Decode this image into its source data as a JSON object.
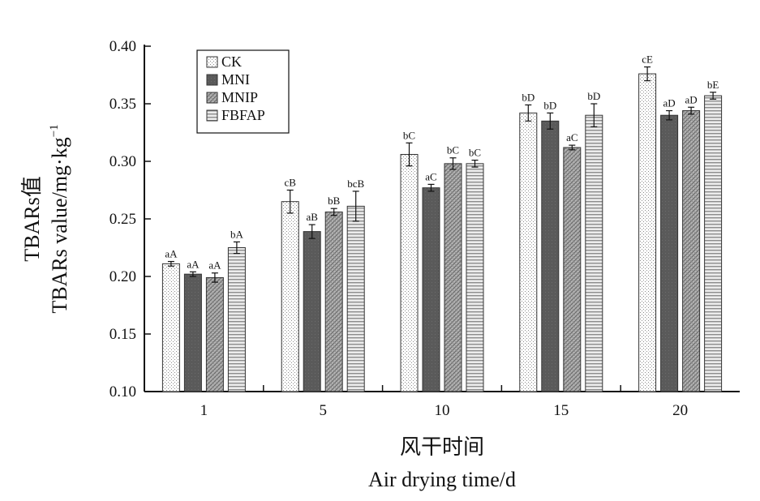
{
  "chart_data": {
    "type": "bar",
    "categories": [
      "1",
      "5",
      "10",
      "15",
      "20"
    ],
    "xlabel": "风干时间",
    "xlabel_en": "Air drying time/d",
    "ylabel": "TBARs值",
    "ylabel_en": "TBARs value/mg·kg",
    "ylabel_en_sup": "−1",
    "ylim": [
      0.1,
      0.4
    ],
    "yticks": [
      "0.10",
      "0.15",
      "0.20",
      "0.25",
      "0.30",
      "0.35",
      "0.40"
    ],
    "legend_position": "top-left",
    "grid": false,
    "series": [
      {
        "name": "CK",
        "pattern": "dots",
        "values": [
          0.211,
          0.265,
          0.306,
          0.342,
          0.376
        ],
        "errors": [
          0.002,
          0.01,
          0.01,
          0.007,
          0.006
        ],
        "labels": [
          "aA",
          "cB",
          "bC",
          "bD",
          "cE"
        ]
      },
      {
        "name": "MNI",
        "pattern": "solid-dark",
        "values": [
          0.202,
          0.239,
          0.277,
          0.335,
          0.34
        ],
        "errors": [
          0.002,
          0.006,
          0.003,
          0.007,
          0.004
        ],
        "labels": [
          "aA",
          "aB",
          "aC",
          "bD",
          "aD"
        ]
      },
      {
        "name": "MNIP",
        "pattern": "crosshatch",
        "values": [
          0.199,
          0.256,
          0.298,
          0.312,
          0.344
        ],
        "errors": [
          0.004,
          0.003,
          0.005,
          0.002,
          0.003
        ],
        "labels": [
          "aA",
          "bB",
          "bC",
          "aC",
          "aD"
        ]
      },
      {
        "name": "FBFAP",
        "pattern": "stripes",
        "values": [
          0.225,
          0.261,
          0.298,
          0.34,
          0.357
        ],
        "errors": [
          0.005,
          0.013,
          0.003,
          0.01,
          0.003
        ],
        "labels": [
          "bA",
          "bcB",
          "bC",
          "bD",
          "bE"
        ]
      }
    ]
  }
}
